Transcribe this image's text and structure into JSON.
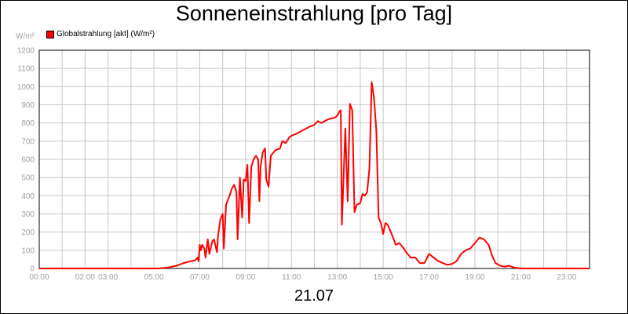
{
  "chart_data": {
    "type": "line",
    "title": "Sonneneinstrahlung [pro Tag]",
    "ylabel": "W/m²",
    "xlabel": "21.07",
    "ylim": [
      0,
      1200
    ],
    "yticks": [
      0,
      100,
      200,
      300,
      400,
      500,
      600,
      700,
      800,
      900,
      1000,
      1100,
      1200
    ],
    "xlim": [
      0,
      24
    ],
    "xtick_labels": [
      {
        "label": "00:00",
        "x": 0
      },
      {
        "label": "02:00",
        "x": 2
      },
      {
        "label": "03:00",
        "x": 3
      },
      {
        "label": "05:00",
        "x": 5
      },
      {
        "label": "07:00",
        "x": 7
      },
      {
        "label": "09:00",
        "x": 9
      },
      {
        "label": "11:00",
        "x": 11
      },
      {
        "label": "13:00",
        "x": 13
      },
      {
        "label": "15:00",
        "x": 15
      },
      {
        "label": "17:00",
        "x": 17
      },
      {
        "label": "19:00",
        "x": 19
      },
      {
        "label": "21:00",
        "x": 21
      },
      {
        "label": "23:00",
        "x": 23
      }
    ],
    "grid": true,
    "legend_position": "top-left",
    "series": [
      {
        "name": "Globalstrahlung [akt] (W/m²)",
        "color": "#ff0000",
        "points": [
          [
            0,
            0
          ],
          [
            5.2,
            0
          ],
          [
            5.6,
            5
          ],
          [
            6.0,
            15
          ],
          [
            6.3,
            30
          ],
          [
            6.6,
            40
          ],
          [
            6.8,
            45
          ],
          [
            6.9,
            60
          ],
          [
            6.95,
            40
          ],
          [
            7.0,
            130
          ],
          [
            7.05,
            100
          ],
          [
            7.1,
            130
          ],
          [
            7.2,
            110
          ],
          [
            7.25,
            60
          ],
          [
            7.35,
            160
          ],
          [
            7.42,
            80
          ],
          [
            7.55,
            150
          ],
          [
            7.62,
            160
          ],
          [
            7.75,
            90
          ],
          [
            7.8,
            180
          ],
          [
            7.9,
            270
          ],
          [
            8.0,
            300
          ],
          [
            8.05,
            110
          ],
          [
            8.15,
            350
          ],
          [
            8.3,
            400
          ],
          [
            8.4,
            440
          ],
          [
            8.5,
            460
          ],
          [
            8.6,
            420
          ],
          [
            8.65,
            160
          ],
          [
            8.75,
            500
          ],
          [
            8.85,
            280
          ],
          [
            8.92,
            490
          ],
          [
            9.0,
            480
          ],
          [
            9.08,
            570
          ],
          [
            9.15,
            250
          ],
          [
            9.25,
            560
          ],
          [
            9.35,
            600
          ],
          [
            9.45,
            620
          ],
          [
            9.55,
            600
          ],
          [
            9.6,
            370
          ],
          [
            9.65,
            560
          ],
          [
            9.75,
            640
          ],
          [
            9.85,
            660
          ],
          [
            9.9,
            490
          ],
          [
            10.0,
            450
          ],
          [
            10.1,
            620
          ],
          [
            10.3,
            650
          ],
          [
            10.5,
            660
          ],
          [
            10.6,
            700
          ],
          [
            10.75,
            690
          ],
          [
            10.9,
            720
          ],
          [
            11.0,
            730
          ],
          [
            11.2,
            740
          ],
          [
            11.5,
            760
          ],
          [
            11.8,
            780
          ],
          [
            12.0,
            790
          ],
          [
            12.15,
            810
          ],
          [
            12.3,
            800
          ],
          [
            12.6,
            820
          ],
          [
            12.9,
            830
          ],
          [
            13.0,
            840
          ],
          [
            13.1,
            865
          ],
          [
            13.15,
            870
          ],
          [
            13.2,
            240
          ],
          [
            13.35,
            770
          ],
          [
            13.45,
            370
          ],
          [
            13.55,
            905
          ],
          [
            13.65,
            870
          ],
          [
            13.75,
            310
          ],
          [
            13.85,
            350
          ],
          [
            14.0,
            360
          ],
          [
            14.1,
            410
          ],
          [
            14.2,
            400
          ],
          [
            14.3,
            420
          ],
          [
            14.4,
            550
          ],
          [
            14.5,
            1025
          ],
          [
            14.6,
            940
          ],
          [
            14.7,
            760
          ],
          [
            14.8,
            280
          ],
          [
            14.9,
            250
          ],
          [
            15.0,
            190
          ],
          [
            15.1,
            250
          ],
          [
            15.2,
            240
          ],
          [
            15.4,
            180
          ],
          [
            15.55,
            130
          ],
          [
            15.7,
            140
          ],
          [
            15.9,
            110
          ],
          [
            16.0,
            90
          ],
          [
            16.2,
            60
          ],
          [
            16.4,
            60
          ],
          [
            16.6,
            30
          ],
          [
            16.8,
            30
          ],
          [
            17.0,
            80
          ],
          [
            17.2,
            60
          ],
          [
            17.4,
            40
          ],
          [
            17.6,
            30
          ],
          [
            17.8,
            20
          ],
          [
            18.0,
            25
          ],
          [
            18.2,
            40
          ],
          [
            18.4,
            80
          ],
          [
            18.6,
            100
          ],
          [
            18.8,
            110
          ],
          [
            19.0,
            140
          ],
          [
            19.2,
            170
          ],
          [
            19.4,
            160
          ],
          [
            19.6,
            130
          ],
          [
            19.75,
            70
          ],
          [
            19.9,
            30
          ],
          [
            20.1,
            15
          ],
          [
            20.3,
            10
          ],
          [
            20.5,
            15
          ],
          [
            20.7,
            5
          ],
          [
            21.0,
            0
          ],
          [
            24,
            0
          ]
        ]
      }
    ]
  }
}
